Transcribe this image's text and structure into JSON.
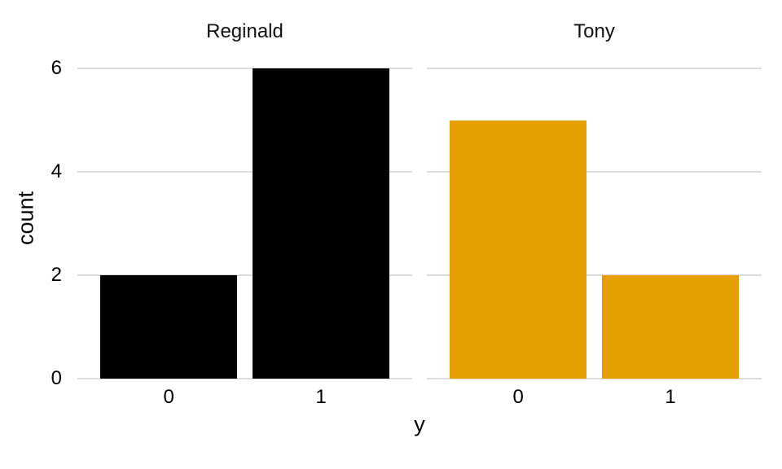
{
  "chart_data": {
    "type": "bar",
    "title": "",
    "xlabel": "y",
    "ylabel": "count",
    "ylim": [
      0,
      6.3
    ],
    "yticks": [
      0,
      2,
      4,
      6
    ],
    "grid": "horizontal",
    "gridline_color": "#DCDCDC",
    "background": "#FFFFFF",
    "legend": "none",
    "facets": [
      {
        "title": "Reginald",
        "color": "#000000",
        "categories": [
          "0",
          "1"
        ],
        "values": [
          2,
          6
        ]
      },
      {
        "title": "Tony",
        "color": "#E69F00",
        "categories": [
          "0",
          "1"
        ],
        "values": [
          5,
          2
        ]
      }
    ]
  }
}
